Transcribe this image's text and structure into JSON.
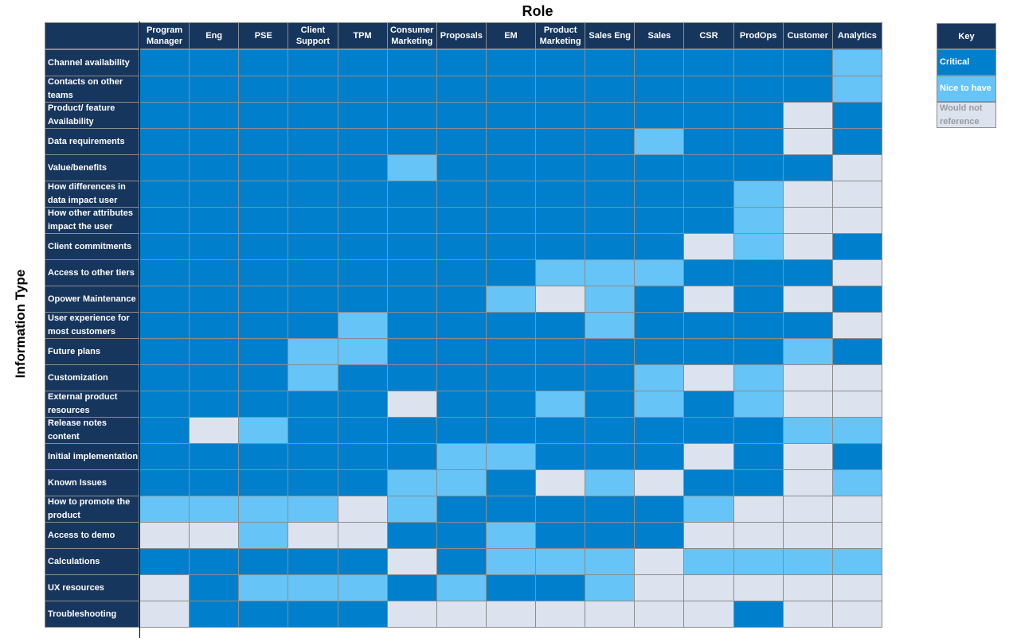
{
  "titles": {
    "role": "Role",
    "information_type": "Information Type"
  },
  "colors": {
    "header": "#17365d",
    "critical": "#0080cc",
    "nice": "#66c4f7",
    "would_not": "#dce3ef"
  },
  "key": {
    "title": "Key",
    "items": [
      {
        "level": 2,
        "label": "Critical",
        "color": "#0080cc",
        "text_color": "#ffffff"
      },
      {
        "level": 1,
        "label": "Nice to have",
        "color": "#66c4f7",
        "text_color": "#ffffff"
      },
      {
        "level": 0,
        "label": "Would not reference",
        "color": "#dce3ef",
        "text_color": "#9a9a9a"
      }
    ]
  },
  "chart_data": {
    "type": "heatmap",
    "xlabel": "Role",
    "ylabel": "Information Type",
    "legend": "right",
    "levels": {
      "2": "Critical",
      "1": "Nice to have",
      "0": "Would not reference"
    },
    "columns": [
      "Program Manager",
      "Eng",
      "PSE",
      "Client Support",
      "TPM",
      "Consumer Marketing",
      "Proposals",
      "EM",
      "Product Marketing",
      "Sales Eng",
      "Sales",
      "CSR",
      "ProdOps",
      "Customer",
      "Analytics"
    ],
    "rows": [
      "Channel availability",
      "Contacts on other teams",
      "Product/ feature Availability",
      "Data requirements",
      "Value/benefits",
      "How differences in data impact user",
      "How other attributes impact the user",
      "Client commitments",
      "Access to other tiers",
      "Opower Maintenance",
      "User experience for most customers",
      "Future plans",
      "Customization",
      "External product resources",
      "Release notes content",
      "Initial implementation",
      " Known Issues",
      "How to promote the product",
      "Access to demo",
      "Calculations",
      "UX resources",
      "Troubleshooting"
    ],
    "values": [
      [
        2,
        2,
        2,
        2,
        2,
        2,
        2,
        2,
        2,
        2,
        2,
        2,
        2,
        2,
        1
      ],
      [
        2,
        2,
        2,
        2,
        2,
        2,
        2,
        2,
        2,
        2,
        2,
        2,
        2,
        2,
        1
      ],
      [
        2,
        2,
        2,
        2,
        2,
        2,
        2,
        2,
        2,
        2,
        2,
        2,
        2,
        0,
        2
      ],
      [
        2,
        2,
        2,
        2,
        2,
        2,
        2,
        2,
        2,
        2,
        1,
        2,
        2,
        0,
        2
      ],
      [
        2,
        2,
        2,
        2,
        2,
        1,
        2,
        2,
        2,
        2,
        2,
        2,
        2,
        2,
        0
      ],
      [
        2,
        2,
        2,
        2,
        2,
        2,
        2,
        2,
        2,
        2,
        2,
        2,
        1,
        0,
        0
      ],
      [
        2,
        2,
        2,
        2,
        2,
        2,
        2,
        2,
        2,
        2,
        2,
        2,
        1,
        0,
        0
      ],
      [
        2,
        2,
        2,
        2,
        2,
        2,
        2,
        2,
        2,
        2,
        2,
        0,
        1,
        0,
        2
      ],
      [
        2,
        2,
        2,
        2,
        2,
        2,
        2,
        2,
        1,
        1,
        1,
        2,
        2,
        2,
        0
      ],
      [
        2,
        2,
        2,
        2,
        2,
        2,
        2,
        1,
        0,
        1,
        2,
        0,
        2,
        0,
        2
      ],
      [
        2,
        2,
        2,
        2,
        1,
        2,
        2,
        2,
        2,
        1,
        2,
        2,
        2,
        2,
        0
      ],
      [
        2,
        2,
        2,
        1,
        1,
        2,
        2,
        2,
        2,
        2,
        2,
        2,
        2,
        1,
        2
      ],
      [
        2,
        2,
        2,
        1,
        2,
        2,
        2,
        2,
        2,
        2,
        1,
        0,
        1,
        0,
        0
      ],
      [
        2,
        2,
        2,
        2,
        2,
        0,
        2,
        2,
        1,
        2,
        1,
        2,
        1,
        0,
        0
      ],
      [
        2,
        0,
        1,
        2,
        2,
        2,
        2,
        2,
        2,
        2,
        2,
        2,
        2,
        1,
        1
      ],
      [
        2,
        2,
        2,
        2,
        2,
        2,
        1,
        1,
        2,
        2,
        2,
        0,
        2,
        0,
        2
      ],
      [
        2,
        2,
        2,
        2,
        2,
        1,
        1,
        2,
        0,
        1,
        0,
        2,
        2,
        0,
        1
      ],
      [
        1,
        1,
        1,
        1,
        0,
        1,
        2,
        2,
        2,
        2,
        2,
        1,
        0,
        0,
        0
      ],
      [
        0,
        0,
        1,
        0,
        0,
        2,
        2,
        1,
        2,
        2,
        2,
        0,
        0,
        0,
        0
      ],
      [
        2,
        2,
        2,
        2,
        2,
        0,
        2,
        1,
        1,
        1,
        0,
        1,
        1,
        1,
        1
      ],
      [
        0,
        2,
        1,
        1,
        1,
        2,
        1,
        2,
        2,
        1,
        0,
        0,
        0,
        0,
        0
      ],
      [
        0,
        2,
        2,
        2,
        2,
        0,
        0,
        0,
        0,
        0,
        0,
        0,
        2,
        0,
        0
      ]
    ]
  }
}
